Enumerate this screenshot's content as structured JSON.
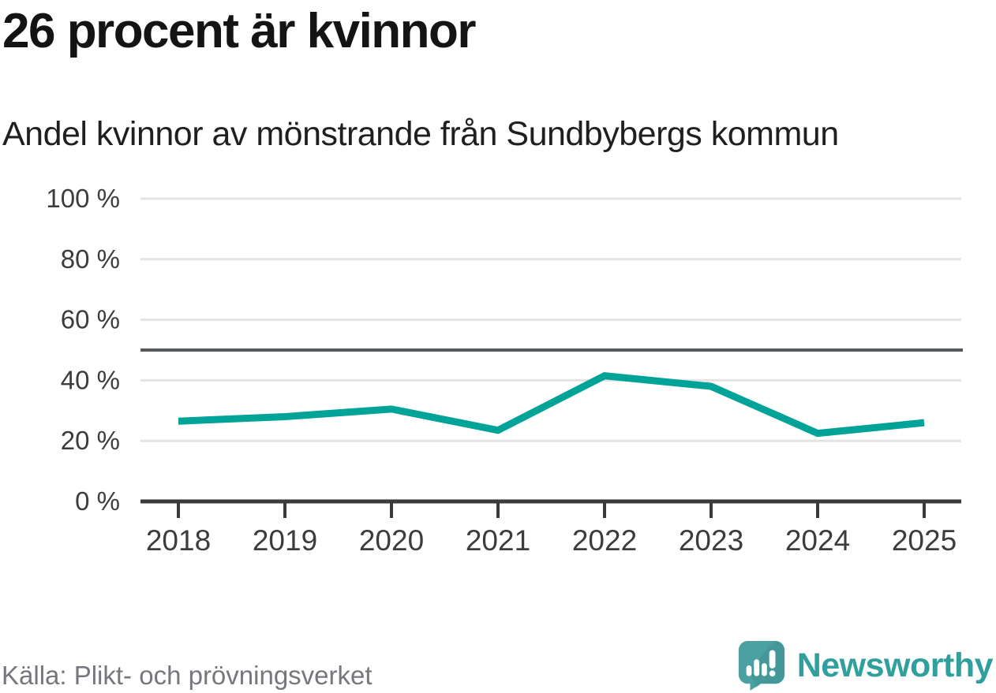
{
  "chart_data": {
    "type": "line",
    "title": "26 procent är kvinnor",
    "subtitle": "Andel kvinnor av mönstrande från Sundbybergs kommun",
    "categories": [
      "2018",
      "2019",
      "2020",
      "2021",
      "2022",
      "2023",
      "2024",
      "2025"
    ],
    "series": [
      {
        "name": "Andel kvinnor av mönstrande",
        "values": [
          26.5,
          28,
          30.5,
          23.5,
          41.5,
          38,
          22.5,
          26
        ]
      }
    ],
    "unit": "%",
    "ylim": [
      0,
      100
    ],
    "yticks": [
      {
        "v": 0,
        "label": "0 %"
      },
      {
        "v": 20,
        "label": "20 %"
      },
      {
        "v": 40,
        "label": "40 %"
      },
      {
        "v": 60,
        "label": "60 %"
      },
      {
        "v": 80,
        "label": "80 %"
      },
      {
        "v": 100,
        "label": "100 %"
      }
    ],
    "reference_line": 50,
    "grid": true,
    "legend_position": "none",
    "colors": {
      "line": "#00a398",
      "grid": "#e3e3e3",
      "reference": "#55595c",
      "axis": "#3a3a3c",
      "tick_text": "#3c3c3c"
    }
  },
  "footer": {
    "source": "Källa: Plikt- och prövningsverket",
    "brand": "Newsworthy",
    "brand_colors": {
      "bubble": "#4ba1a1",
      "bubble_shade": "#3d8f91",
      "glyph": "#ffffff",
      "wordmark": "#2fa09e"
    }
  }
}
